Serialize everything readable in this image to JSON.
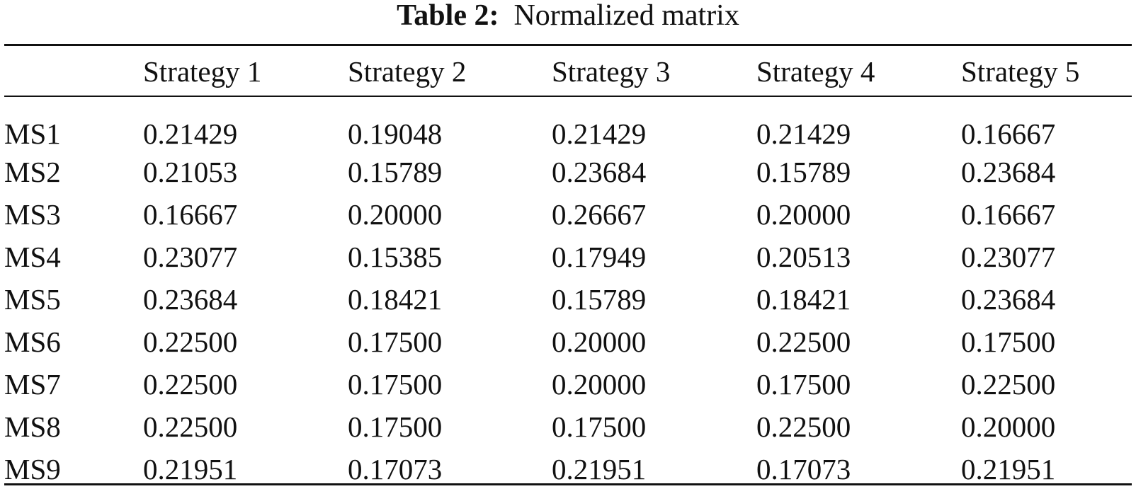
{
  "caption": {
    "label": "Table 2:",
    "text": "Normalized matrix"
  },
  "table": {
    "headers": [
      "",
      "Strategy 1",
      "Strategy 2",
      "Strategy 3",
      "Strategy 4",
      "Strategy 5"
    ],
    "rows": [
      [
        "MS1",
        "0.21429",
        "0.19048",
        "0.21429",
        "0.21429",
        "0.16667"
      ],
      [
        "MS2",
        "0.21053",
        "0.15789",
        "0.23684",
        "0.15789",
        "0.23684"
      ],
      [
        "MS3",
        "0.16667",
        "0.20000",
        "0.26667",
        "0.20000",
        "0.16667"
      ],
      [
        "MS4",
        "0.23077",
        "0.15385",
        "0.17949",
        "0.20513",
        "0.23077"
      ],
      [
        "MS5",
        "0.23684",
        "0.18421",
        "0.15789",
        "0.18421",
        "0.23684"
      ],
      [
        "MS6",
        "0.22500",
        "0.17500",
        "0.20000",
        "0.22500",
        "0.17500"
      ],
      [
        "MS7",
        "0.22500",
        "0.17500",
        "0.20000",
        "0.17500",
        "0.22500"
      ],
      [
        "MS8",
        "0.22500",
        "0.17500",
        "0.17500",
        "0.22500",
        "0.20000"
      ],
      [
        "MS9",
        "0.21951",
        "0.17073",
        "0.21951",
        "0.17073",
        "0.21951"
      ]
    ]
  }
}
